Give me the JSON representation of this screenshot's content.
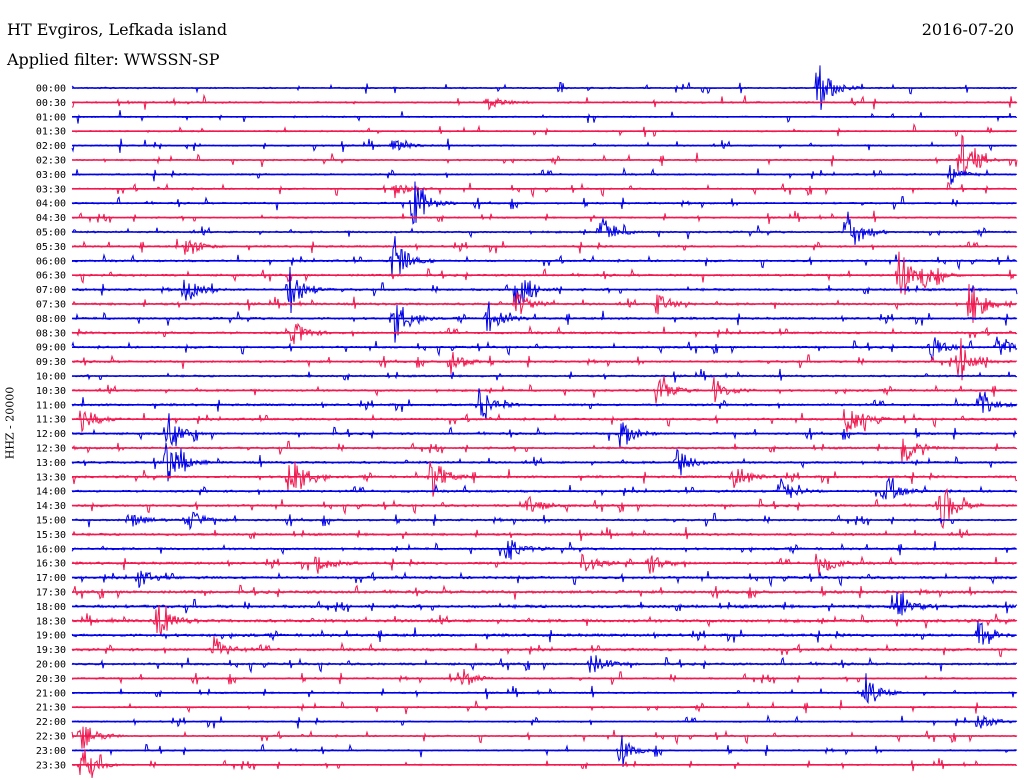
{
  "header": {
    "station": "HT Evgiros, Lefkada island",
    "date": "2016-07-20",
    "filter": "Applied filter: WWSSN-SP"
  },
  "chart_data": {
    "type": "line",
    "title": "HT Evgiros, Lefkada island",
    "date": "2016-07-20",
    "subtitle": "Applied filter: WWSSN-SP",
    "ylabel": "HHZ - 20000",
    "xlabel": "",
    "colors": [
      "#0000e6",
      "#f0184f"
    ],
    "rows": [
      "00:00",
      "00:30",
      "01:00",
      "01:30",
      "02:00",
      "02:30",
      "03:00",
      "03:30",
      "04:00",
      "04:30",
      "05:00",
      "05:30",
      "06:00",
      "06:30",
      "07:00",
      "07:30",
      "08:00",
      "08:30",
      "09:00",
      "09:30",
      "10:00",
      "10:30",
      "11:00",
      "11:30",
      "12:00",
      "12:30",
      "13:00",
      "13:30",
      "14:00",
      "14:30",
      "15:00",
      "15:30",
      "16:00",
      "16:30",
      "17:00",
      "17:30",
      "18:00",
      "18:30",
      "19:00",
      "19:30",
      "20:00",
      "20:30",
      "21:00",
      "21:30",
      "22:00",
      "22:30",
      "23:00",
      "23:30"
    ],
    "row_noise": [
      0.4,
      0.45,
      0.35,
      0.35,
      0.4,
      0.4,
      0.45,
      0.4,
      0.45,
      0.4,
      0.5,
      0.5,
      0.55,
      0.55,
      0.6,
      0.6,
      0.6,
      0.6,
      0.55,
      0.55,
      0.5,
      0.55,
      0.6,
      0.6,
      0.55,
      0.55,
      0.6,
      0.6,
      0.6,
      0.6,
      0.55,
      0.6,
      0.6,
      0.65,
      0.7,
      0.75,
      0.8,
      0.8,
      0.75,
      0.7,
      0.6,
      0.45,
      0.4,
      0.4,
      0.4,
      0.4,
      0.35,
      0.35
    ],
    "events": [
      {
        "row": 0,
        "t": 0.79,
        "amp": 28
      },
      {
        "row": 1,
        "t": 0.44,
        "amp": 8
      },
      {
        "row": 4,
        "t": 0.34,
        "amp": 7
      },
      {
        "row": 5,
        "t": 0.94,
        "amp": 30
      },
      {
        "row": 6,
        "t": 0.93,
        "amp": 10
      },
      {
        "row": 7,
        "t": 0.34,
        "amp": 12
      },
      {
        "row": 8,
        "t": 0.36,
        "amp": 30
      },
      {
        "row": 10,
        "t": 0.56,
        "amp": 18
      },
      {
        "row": 10,
        "t": 0.82,
        "amp": 28
      },
      {
        "row": 11,
        "t": 0.12,
        "amp": 12
      },
      {
        "row": 12,
        "t": 0.34,
        "amp": 26
      },
      {
        "row": 13,
        "t": 0.875,
        "amp": 24
      },
      {
        "row": 13,
        "t": 0.9,
        "amp": 12
      },
      {
        "row": 14,
        "t": 0.12,
        "amp": 14
      },
      {
        "row": 14,
        "t": 0.23,
        "amp": 26
      },
      {
        "row": 14,
        "t": 0.47,
        "amp": 20
      },
      {
        "row": 15,
        "t": 0.47,
        "amp": 14
      },
      {
        "row": 15,
        "t": 0.62,
        "amp": 14
      },
      {
        "row": 15,
        "t": 0.95,
        "amp": 26
      },
      {
        "row": 16,
        "t": 0.34,
        "amp": 26
      },
      {
        "row": 16,
        "t": 0.44,
        "amp": 18
      },
      {
        "row": 17,
        "t": 0.23,
        "amp": 18
      },
      {
        "row": 18,
        "t": 0.91,
        "amp": 14
      },
      {
        "row": 18,
        "t": 0.98,
        "amp": 16
      },
      {
        "row": 19,
        "t": 0.4,
        "amp": 14
      },
      {
        "row": 19,
        "t": 0.94,
        "amp": 24
      },
      {
        "row": 21,
        "t": 0.62,
        "amp": 14
      },
      {
        "row": 21,
        "t": 0.68,
        "amp": 14
      },
      {
        "row": 22,
        "t": 0.43,
        "amp": 16
      },
      {
        "row": 22,
        "t": 0.96,
        "amp": 14
      },
      {
        "row": 23,
        "t": 0.01,
        "amp": 14
      },
      {
        "row": 23,
        "t": 0.82,
        "amp": 22
      },
      {
        "row": 24,
        "t": 0.1,
        "amp": 18
      },
      {
        "row": 24,
        "t": 0.58,
        "amp": 18
      },
      {
        "row": 25,
        "t": 0.88,
        "amp": 18
      },
      {
        "row": 26,
        "t": 0.1,
        "amp": 24
      },
      {
        "row": 26,
        "t": 0.64,
        "amp": 14
      },
      {
        "row": 27,
        "t": 0.23,
        "amp": 30
      },
      {
        "row": 27,
        "t": 0.38,
        "amp": 22
      },
      {
        "row": 27,
        "t": 0.7,
        "amp": 16
      },
      {
        "row": 28,
        "t": 0.75,
        "amp": 16
      },
      {
        "row": 28,
        "t": 0.86,
        "amp": 18
      },
      {
        "row": 29,
        "t": 0.48,
        "amp": 14
      },
      {
        "row": 29,
        "t": 0.92,
        "amp": 26
      },
      {
        "row": 30,
        "t": 0.06,
        "amp": 10
      },
      {
        "row": 30,
        "t": 0.12,
        "amp": 14
      },
      {
        "row": 32,
        "t": 0.46,
        "amp": 14
      },
      {
        "row": 33,
        "t": 0.26,
        "amp": 12
      },
      {
        "row": 33,
        "t": 0.54,
        "amp": 14
      },
      {
        "row": 33,
        "t": 0.61,
        "amp": 12
      },
      {
        "row": 33,
        "t": 0.79,
        "amp": 16
      },
      {
        "row": 34,
        "t": 0.07,
        "amp": 10
      },
      {
        "row": 36,
        "t": 0.87,
        "amp": 22
      },
      {
        "row": 37,
        "t": 0.09,
        "amp": 18
      },
      {
        "row": 38,
        "t": 0.96,
        "amp": 18
      },
      {
        "row": 39,
        "t": 0.15,
        "amp": 14
      },
      {
        "row": 40,
        "t": 0.55,
        "amp": 12
      },
      {
        "row": 41,
        "t": 0.41,
        "amp": 14
      },
      {
        "row": 42,
        "t": 0.84,
        "amp": 18
      },
      {
        "row": 44,
        "t": 0.96,
        "amp": 10
      },
      {
        "row": 45,
        "t": 0.01,
        "amp": 18
      },
      {
        "row": 46,
        "t": 0.58,
        "amp": 14
      },
      {
        "row": 47,
        "t": 0.01,
        "amp": 20
      }
    ]
  }
}
